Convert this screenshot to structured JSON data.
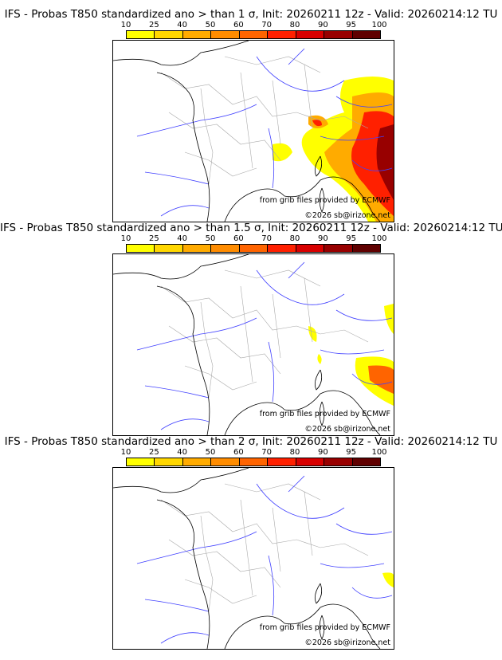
{
  "panels": [
    {
      "title": "IFS - Probas T850  standardized ano > than 1 σ, Init: 20260211 12z - Valid: 20260214:12 TU",
      "level": 1
    },
    {
      "title": "IFS - Probas T850  standardized ano > than 1.5 σ, Init: 20260211 12z - Valid: 20260214:12 TU",
      "level": 2
    },
    {
      "title": "IFS - Probas T850  standardized ano > than 2 σ, Init: 20260211 12z - Valid: 20260214:12 TU",
      "level": 3
    }
  ],
  "colorbar": {
    "ticks": [
      "10",
      "25",
      "40",
      "50",
      "60",
      "70",
      "80",
      "90",
      "95",
      "100"
    ],
    "colors": [
      "#ffff00",
      "#ffd700",
      "#ffab00",
      "#ff8c00",
      "#ff6400",
      "#ff2000",
      "#d80000",
      "#980000",
      "#600000"
    ]
  },
  "credits": {
    "source": "from grib files provided by ECMWF",
    "copyright": "©2026 sb@irizone.net"
  }
}
